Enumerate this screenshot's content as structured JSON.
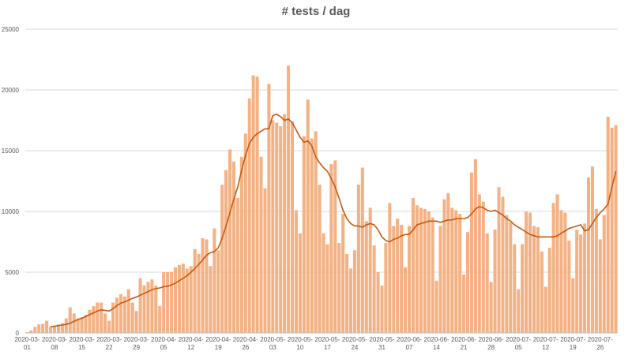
{
  "chart_data": {
    "type": "bar",
    "title": "# tests / dag",
    "xlabel": "",
    "ylabel": "",
    "ylim": [
      0,
      25000
    ],
    "yticks": [
      0,
      5000,
      10000,
      15000,
      20000,
      25000
    ],
    "grid": true,
    "x_tick_labels": [
      {
        "line1": "2020-03-",
        "line2": "01"
      },
      {
        "line1": "2020-03-",
        "line2": "08"
      },
      {
        "line1": "2020-03-",
        "line2": "15"
      },
      {
        "line1": "2020-03-",
        "line2": "22"
      },
      {
        "line1": "2020-03-",
        "line2": "29"
      },
      {
        "line1": "2020-04-",
        "line2": "05"
      },
      {
        "line1": "2020-04-",
        "line2": "12"
      },
      {
        "line1": "2020-04-",
        "line2": "19"
      },
      {
        "line1": "2020-04-",
        "line2": "26"
      },
      {
        "line1": "2020-05-",
        "line2": "03"
      },
      {
        "line1": "2020-05-",
        "line2": "10"
      },
      {
        "line1": "2020-05-",
        "line2": "17"
      },
      {
        "line1": "2020-05-",
        "line2": "24"
      },
      {
        "line1": "2020-05-",
        "line2": "31"
      },
      {
        "line1": "2020-06-",
        "line2": "07"
      },
      {
        "line1": "2020-06-",
        "line2": "14"
      },
      {
        "line1": "2020-06-",
        "line2": "21"
      },
      {
        "line1": "2020-06-",
        "line2": "28"
      },
      {
        "line1": "2020-07-",
        "line2": "05"
      },
      {
        "line1": "2020-07-",
        "line2": "12"
      },
      {
        "line1": "2020-07-",
        "line2": "19"
      },
      {
        "line1": "2020-07-",
        "line2": "26"
      }
    ],
    "categories": [
      "2020-03-01",
      "2020-03-02",
      "2020-03-03",
      "2020-03-04",
      "2020-03-05",
      "2020-03-06",
      "2020-03-07",
      "2020-03-08",
      "2020-03-09",
      "2020-03-10",
      "2020-03-11",
      "2020-03-12",
      "2020-03-13",
      "2020-03-14",
      "2020-03-15",
      "2020-03-16",
      "2020-03-17",
      "2020-03-18",
      "2020-03-19",
      "2020-03-20",
      "2020-03-21",
      "2020-03-22",
      "2020-03-23",
      "2020-03-24",
      "2020-03-25",
      "2020-03-26",
      "2020-03-27",
      "2020-03-28",
      "2020-03-29",
      "2020-03-30",
      "2020-03-31",
      "2020-04-01",
      "2020-04-02",
      "2020-04-03",
      "2020-04-04",
      "2020-04-05",
      "2020-04-06",
      "2020-04-07",
      "2020-04-08",
      "2020-04-09",
      "2020-04-10",
      "2020-04-11",
      "2020-04-12",
      "2020-04-13",
      "2020-04-14",
      "2020-04-15",
      "2020-04-16",
      "2020-04-17",
      "2020-04-18",
      "2020-04-19",
      "2020-04-20",
      "2020-04-21",
      "2020-04-22",
      "2020-04-23",
      "2020-04-24",
      "2020-04-25",
      "2020-04-26",
      "2020-04-27",
      "2020-04-28",
      "2020-04-29",
      "2020-04-30",
      "2020-05-01",
      "2020-05-02",
      "2020-05-03",
      "2020-05-04",
      "2020-05-05",
      "2020-05-06",
      "2020-05-07",
      "2020-05-08",
      "2020-05-09",
      "2020-05-10",
      "2020-05-11",
      "2020-05-12",
      "2020-05-13",
      "2020-05-14",
      "2020-05-15",
      "2020-05-16",
      "2020-05-17",
      "2020-05-18",
      "2020-05-19",
      "2020-05-20",
      "2020-05-21",
      "2020-05-22",
      "2020-05-23",
      "2020-05-24",
      "2020-05-25",
      "2020-05-26",
      "2020-05-27",
      "2020-05-28",
      "2020-05-29",
      "2020-05-30",
      "2020-05-31",
      "2020-06-01",
      "2020-06-02",
      "2020-06-03",
      "2020-06-04",
      "2020-06-05",
      "2020-06-06",
      "2020-06-07",
      "2020-06-08",
      "2020-06-09",
      "2020-06-10",
      "2020-06-11",
      "2020-06-12",
      "2020-06-13",
      "2020-06-14",
      "2020-06-15",
      "2020-06-16",
      "2020-06-17",
      "2020-06-18",
      "2020-06-19",
      "2020-06-20",
      "2020-06-21",
      "2020-06-22",
      "2020-06-23",
      "2020-06-24",
      "2020-06-25",
      "2020-06-26",
      "2020-06-27",
      "2020-06-28",
      "2020-06-29",
      "2020-06-30",
      "2020-07-01",
      "2020-07-02",
      "2020-07-03",
      "2020-07-04",
      "2020-07-05",
      "2020-07-06",
      "2020-07-07",
      "2020-07-08",
      "2020-07-09",
      "2020-07-10",
      "2020-07-11",
      "2020-07-12",
      "2020-07-13",
      "2020-07-14",
      "2020-07-15",
      "2020-07-16",
      "2020-07-17",
      "2020-07-18",
      "2020-07-19",
      "2020-07-20",
      "2020-07-21",
      "2020-07-22",
      "2020-07-23",
      "2020-07-24",
      "2020-07-25",
      "2020-07-26",
      "2020-07-27",
      "2020-07-28",
      "2020-07-29",
      "2020-07-30"
    ],
    "series": [
      {
        "type": "bar",
        "color": "#F4B183",
        "values": [
          50,
          200,
          500,
          700,
          750,
          1000,
          500,
          600,
          700,
          800,
          1200,
          2100,
          1600,
          1200,
          1300,
          1500,
          1900,
          2200,
          2500,
          2500,
          1600,
          1000,
          2500,
          2900,
          3200,
          3000,
          3600,
          2500,
          1800,
          4500,
          3900,
          4200,
          4400,
          3900,
          2200,
          5000,
          5000,
          5000,
          5400,
          5600,
          5700,
          5300,
          5500,
          6900,
          6500,
          7800,
          7700,
          5500,
          8600,
          6800,
          12200,
          13400,
          15100,
          14100,
          11100,
          14500,
          16400,
          19300,
          21200,
          21100,
          14500,
          11900,
          20500,
          17500,
          17300,
          17000,
          18000,
          22000,
          17400,
          10100,
          8200,
          16200,
          19200,
          16000,
          16600,
          12200,
          8200,
          7300,
          13900,
          14200,
          7400,
          9800,
          6500,
          5300,
          6800,
          12200,
          13600,
          9200,
          10300,
          7200,
          5000,
          3900,
          7400,
          10700,
          8800,
          9400,
          8900,
          5400,
          8800,
          11100,
          10500,
          10300,
          10200,
          10000,
          9500,
          4300,
          8800,
          11000,
          11500,
          10300,
          10100,
          9800,
          4800,
          8300,
          13200,
          14300,
          11400,
          10800,
          8200,
          4200,
          8500,
          12000,
          11200,
          9700,
          9100,
          7300,
          3600,
          7300,
          10000,
          9900,
          8800,
          8700,
          6700,
          3800,
          7000,
          10700,
          11400,
          10100,
          9900,
          7600,
          4500,
          8500,
          8100,
          9000,
          12800,
          13700,
          10200,
          7700,
          9700,
          17800,
          16900,
          17100
        ]
      },
      {
        "type": "line",
        "color": "#C55A11",
        "values": [
          null,
          null,
          null,
          null,
          null,
          null,
          500,
          550,
          600,
          650,
          700,
          800,
          950,
          1100,
          1200,
          1350,
          1500,
          1650,
          1800,
          1900,
          1850,
          1800,
          2000,
          2250,
          2450,
          2550,
          2700,
          2850,
          2950,
          3100,
          3250,
          3400,
          3550,
          3650,
          3700,
          3800,
          3850,
          3950,
          4100,
          4300,
          4500,
          4700,
          5000,
          5300,
          5650,
          6000,
          6400,
          6600,
          6700,
          7000,
          7800,
          8800,
          9900,
          11000,
          12000,
          13400,
          14600,
          15600,
          16100,
          16400,
          16600,
          16800,
          16800,
          17900,
          18000,
          17800,
          17500,
          17600,
          17300,
          16700,
          16100,
          15700,
          15800,
          15400,
          14500,
          14000,
          13600,
          13300,
          12700,
          12000,
          11100,
          10100,
          9400,
          9000,
          8800,
          8800,
          8700,
          8900,
          9000,
          8900,
          8500,
          7900,
          7600,
          7500,
          7700,
          7800,
          8000,
          8100,
          8100,
          8500,
          8900,
          9000,
          9100,
          9200,
          9200,
          9200,
          9100,
          9200,
          9300,
          9300,
          9400,
          9400,
          9400,
          9500,
          9800,
          10200,
          10400,
          10300,
          10100,
          10000,
          10100,
          9900,
          9700,
          9400,
          9200,
          8900,
          8700,
          8500,
          8300,
          8100,
          8000,
          7900,
          7900,
          7900,
          7900,
          7900,
          8000,
          8200,
          8400,
          8600,
          8700,
          8800,
          8900,
          8400,
          8500,
          9000,
          9500,
          9900,
          10200,
          10600,
          12000,
          13300
        ]
      }
    ]
  }
}
